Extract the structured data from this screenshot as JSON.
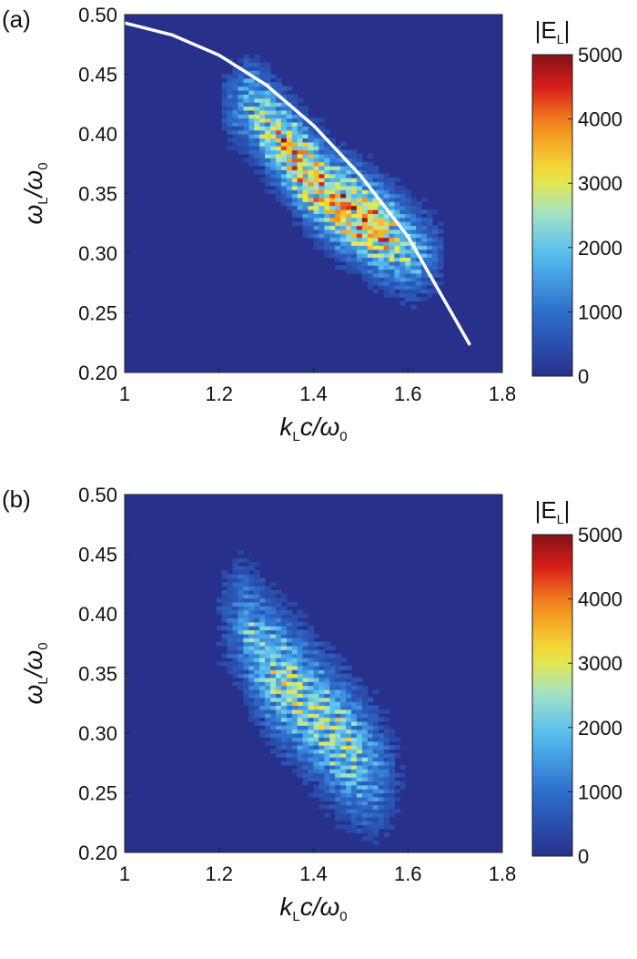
{
  "chart_data": [
    {
      "panel_label": "(a)",
      "type": "heatmap",
      "x_label": {
        "main": "k",
        "sub": "L",
        "rest": "c/ω",
        "sub2": "0"
      },
      "y_label": {
        "main": "ω",
        "sub": "L",
        "rest": "/ω",
        "sub2": "0"
      },
      "xlim": [
        1.0,
        1.8
      ],
      "ylim": [
        0.2,
        0.5
      ],
      "x_ticks": [
        "1",
        "1.2",
        "1.4",
        "1.6",
        "1.8"
      ],
      "y_ticks": [
        "0.20",
        "0.25",
        "0.30",
        "0.35",
        "0.40",
        "0.45",
        "0.50"
      ],
      "colorbar": {
        "title_main": "|E",
        "title_sub": "L",
        "title_end": "|",
        "min": 0,
        "max": 5000,
        "ticks": [
          "0",
          "1000",
          "2000",
          "3000",
          "4000",
          "5000"
        ]
      },
      "colors": {
        "background": "#27318c"
      },
      "band": {
        "x": [
          1.26,
          1.32,
          1.38,
          1.44,
          1.5,
          1.56,
          1.62
        ],
        "y_center": [
          0.425,
          0.4,
          0.37,
          0.345,
          0.33,
          0.315,
          0.3
        ],
        "width": 0.035,
        "peak": 4800
      },
      "overlay_curve": {
        "color": "#ffffff",
        "x": [
          1.0,
          1.1,
          1.2,
          1.3,
          1.4,
          1.5,
          1.6,
          1.73
        ],
        "y": [
          0.493,
          0.483,
          0.466,
          0.441,
          0.407,
          0.365,
          0.314,
          0.224
        ]
      }
    },
    {
      "panel_label": "(b)",
      "type": "heatmap",
      "x_label": {
        "main": "k",
        "sub": "L",
        "rest": "c/ω",
        "sub2": "0"
      },
      "y_label": {
        "main": "ω",
        "sub": "L",
        "rest": "/ω",
        "sub2": "0"
      },
      "xlim": [
        1.0,
        1.8
      ],
      "ylim": [
        0.2,
        0.5
      ],
      "x_ticks": [
        "1",
        "1.2",
        "1.4",
        "1.6",
        "1.8"
      ],
      "y_ticks": [
        "0.20",
        "0.25",
        "0.30",
        "0.35",
        "0.40",
        "0.45",
        "0.50"
      ],
      "colorbar": {
        "title_main": "|E",
        "title_sub": "L",
        "title_end": "|",
        "min": 0,
        "max": 5000,
        "ticks": [
          "0",
          "1000",
          "2000",
          "3000",
          "4000",
          "5000"
        ]
      },
      "colors": {
        "background": "#27318c"
      },
      "band": {
        "x": [
          1.24,
          1.3,
          1.36,
          1.42,
          1.48,
          1.54
        ],
        "y_center": [
          0.395,
          0.36,
          0.335,
          0.31,
          0.285,
          0.265
        ],
        "width": 0.05,
        "peak": 3300
      },
      "overlay_curve": null
    }
  ]
}
